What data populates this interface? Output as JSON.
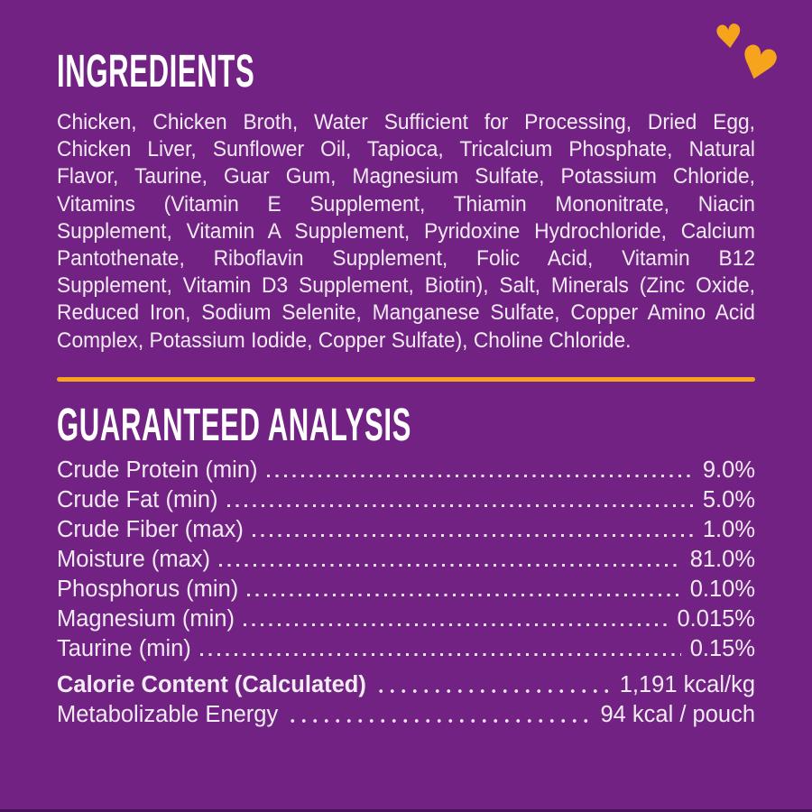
{
  "theme": {
    "background_color": "#712283",
    "accent_color": "#F7A41D",
    "text_color": "#F3EBF4",
    "heading_color": "#FFFFFF"
  },
  "decorations": {
    "hearts": [
      {
        "icon": "heart-icon",
        "size": "small",
        "color": "#F7A41D"
      },
      {
        "icon": "heart-icon",
        "size": "large",
        "color": "#F7A41D"
      }
    ],
    "heart_glyph": "♥"
  },
  "ingredients": {
    "title": "INGREDIENTS",
    "lines": [
      "Chicken, Chicken Broth, Water Sufficient for Processing, Dried Egg,",
      "Chicken Liver, Sunflower Oil, Tapioca, Tricalcium Phosphate, Natural",
      "Flavor, Taurine, Guar Gum, Magnesium Sulfate, Potassium Chloride,",
      "Vitamins (Vitamin E Supplement, Thiamin Mononitrate, Niacin",
      "Supplement, Vitamin A Supplement, Pyridoxine Hydrochloride, Calcium",
      "Pantothenate, Riboflavin Supplement, Folic Acid, Vitamin B12",
      "Supplement, Vitamin D3 Supplement, Biotin), Salt, Minerals (Zinc Oxide,",
      "Reduced Iron, Sodium Selenite, Manganese Sulfate, Copper Amino Acid",
      "Complex, Potassium Iodide, Copper Sulfate), Choline Chloride."
    ]
  },
  "guaranteed_analysis": {
    "title": "GUARANTEED ANALYSIS",
    "rows": [
      {
        "label": "Crude Protein (min)",
        "value": "9.0%"
      },
      {
        "label": "Crude Fat (min)",
        "value": "5.0%"
      },
      {
        "label": "Crude Fiber (max)",
        "value": "1.0%"
      },
      {
        "label": "Moisture (max)",
        "value": "81.0%"
      },
      {
        "label": "Phosphorus (min)",
        "value": "0.10%"
      },
      {
        "label": "Magnesium (min)",
        "value": "0.015%"
      },
      {
        "label": "Taurine (min)",
        "value": "0.15%"
      }
    ],
    "calorie_rows": [
      {
        "label": "Calorie Content (Calculated)",
        "value": "1,191 kcal/kg",
        "bold": true
      },
      {
        "label": "Metabolizable Energy",
        "value": "94 kcal / pouch",
        "bold": false
      }
    ]
  }
}
